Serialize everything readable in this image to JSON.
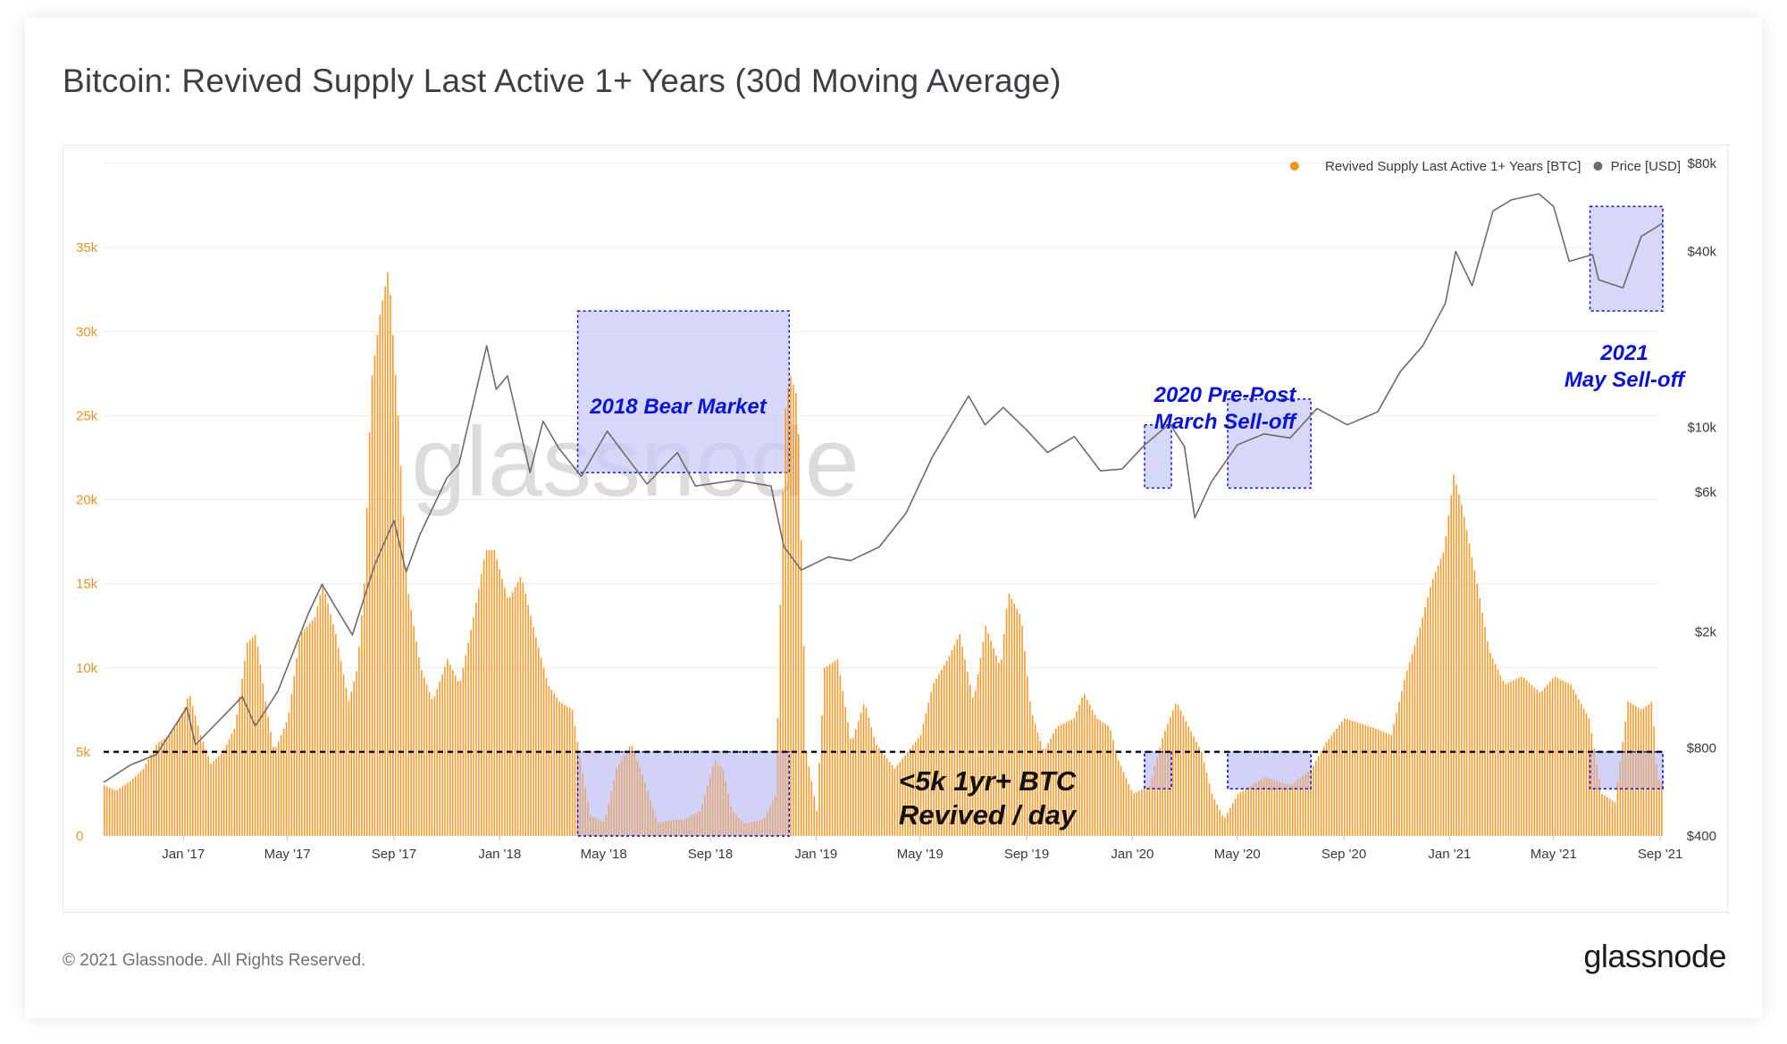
{
  "title": "Bitcoin: Revived Supply Last Active 1+ Years (30d Moving Average)",
  "footer": {
    "copyright": "© 2021 Glassnode. All Rights Reserved.",
    "logo": "glassnode"
  },
  "watermark": "glassnode",
  "legend": [
    {
      "label": "Revived Supply Last Active 1+ Years [BTC]",
      "color": "#f7931a"
    },
    {
      "label": "Price [USD]",
      "color": "#6c6c6c"
    }
  ],
  "colors": {
    "supply": "#f7931a",
    "price": "#6c6c6c",
    "annotation": "#0a14d9",
    "annotation_fill": "#c9c9f7"
  },
  "chart_data": {
    "type": "bar",
    "x_ticks": [
      "Jan '17",
      "May '17",
      "Sep '17",
      "Jan '18",
      "May '18",
      "Sep '18",
      "Jan '19",
      "May '19",
      "Sep '19",
      "Jan '20",
      "May '20",
      "Sep '20",
      "Jan '21",
      "May '21",
      "Sep '21"
    ],
    "x_range": [
      "2016-10-01",
      "2021-09-04"
    ],
    "y_left": {
      "ticks": [
        "0",
        "5k",
        "10k",
        "15k",
        "20k",
        "25k",
        "30k",
        "35k"
      ],
      "range": [
        0,
        40000
      ]
    },
    "y_right": {
      "scale": "log",
      "ticks": [
        "$400",
        "$800",
        "$2k",
        "$6k",
        "$10k",
        "$40k",
        "$80k"
      ],
      "range": [
        400,
        80000
      ]
    },
    "grid": true,
    "legend_position": "top-right",
    "series": [
      {
        "name": "Revived Supply Last Active 1+ Years [BTC]",
        "axis": "left",
        "points": [
          [
            "2016-10-01",
            3000
          ],
          [
            "2016-10-15",
            2700
          ],
          [
            "2016-11-01",
            3300
          ],
          [
            "2016-11-15",
            4000
          ],
          [
            "2016-12-01",
            5500
          ],
          [
            "2016-12-15",
            6000
          ],
          [
            "2017-01-01",
            7500
          ],
          [
            "2017-01-07",
            8500
          ],
          [
            "2017-01-20",
            6000
          ],
          [
            "2017-02-01",
            4300
          ],
          [
            "2017-02-15",
            5000
          ],
          [
            "2017-03-01",
            6500
          ],
          [
            "2017-03-15",
            11500
          ],
          [
            "2017-03-25",
            12000
          ],
          [
            "2017-04-05",
            8000
          ],
          [
            "2017-04-15",
            5000
          ],
          [
            "2017-05-01",
            7000
          ],
          [
            "2017-05-15",
            12000
          ],
          [
            "2017-06-01",
            13000
          ],
          [
            "2017-06-10",
            15000
          ],
          [
            "2017-06-25",
            12000
          ],
          [
            "2017-07-10",
            8000
          ],
          [
            "2017-07-20",
            10000
          ],
          [
            "2017-07-28",
            15000
          ],
          [
            "2017-08-05",
            27000
          ],
          [
            "2017-08-15",
            31000
          ],
          [
            "2017-08-25",
            33800
          ],
          [
            "2017-09-05",
            25000
          ],
          [
            "2017-09-15",
            15000
          ],
          [
            "2017-10-01",
            10000
          ],
          [
            "2017-10-15",
            8000
          ],
          [
            "2017-11-01",
            10500
          ],
          [
            "2017-11-15",
            9000
          ],
          [
            "2017-12-01",
            13000
          ],
          [
            "2017-12-15",
            17000
          ],
          [
            "2017-12-25",
            17000
          ],
          [
            "2018-01-10",
            14000
          ],
          [
            "2018-01-25",
            15500
          ],
          [
            "2018-02-10",
            12000
          ],
          [
            "2018-02-25",
            9000
          ],
          [
            "2018-03-10",
            8000
          ],
          [
            "2018-03-25",
            7500
          ],
          [
            "2018-04-05",
            4000
          ],
          [
            "2018-04-15",
            1200
          ],
          [
            "2018-05-01",
            800
          ],
          [
            "2018-05-15",
            4000
          ],
          [
            "2018-06-01",
            5500
          ],
          [
            "2018-06-15",
            3500
          ],
          [
            "2018-07-01",
            800
          ],
          [
            "2018-08-01",
            1000
          ],
          [
            "2018-08-20",
            1500
          ],
          [
            "2018-09-05",
            4500
          ],
          [
            "2018-09-15",
            4000
          ],
          [
            "2018-09-25",
            1500
          ],
          [
            "2018-10-10",
            700
          ],
          [
            "2018-11-01",
            1000
          ],
          [
            "2018-11-15",
            2500
          ],
          [
            "2018-11-25",
            25000
          ],
          [
            "2018-12-01",
            27500
          ],
          [
            "2018-12-10",
            26000
          ],
          [
            "2018-12-20",
            5000
          ],
          [
            "2019-01-01",
            1500
          ],
          [
            "2019-01-10",
            10000
          ],
          [
            "2019-01-25",
            10500
          ],
          [
            "2019-02-10",
            5500
          ],
          [
            "2019-02-25",
            8000
          ],
          [
            "2019-03-10",
            5500
          ],
          [
            "2019-04-01",
            4000
          ],
          [
            "2019-05-01",
            6000
          ],
          [
            "2019-05-15",
            9000
          ],
          [
            "2019-06-01",
            10500
          ],
          [
            "2019-06-15",
            12000
          ],
          [
            "2019-07-01",
            8000
          ],
          [
            "2019-07-15",
            12500
          ],
          [
            "2019-08-01",
            10000
          ],
          [
            "2019-08-10",
            14500
          ],
          [
            "2019-08-25",
            13000
          ],
          [
            "2019-09-05",
            7500
          ],
          [
            "2019-09-20",
            5000
          ],
          [
            "2019-10-05",
            6500
          ],
          [
            "2019-10-25",
            7000
          ],
          [
            "2019-11-05",
            8500
          ],
          [
            "2019-11-20",
            7000
          ],
          [
            "2019-12-05",
            6500
          ],
          [
            "2019-12-15",
            4500
          ],
          [
            "2020-01-01",
            2500
          ],
          [
            "2020-01-20",
            3000
          ],
          [
            "2020-02-05",
            6000
          ],
          [
            "2020-02-20",
            8000
          ],
          [
            "2020-03-05",
            6500
          ],
          [
            "2020-03-20",
            5000
          ],
          [
            "2020-04-01",
            2500
          ],
          [
            "2020-04-15",
            1000
          ],
          [
            "2020-05-01",
            2500
          ],
          [
            "2020-06-01",
            3500
          ],
          [
            "2020-07-01",
            3000
          ],
          [
            "2020-07-25",
            4000
          ],
          [
            "2020-08-10",
            5500
          ],
          [
            "2020-09-01",
            7000
          ],
          [
            "2020-10-01",
            6500
          ],
          [
            "2020-10-25",
            6000
          ],
          [
            "2020-11-10",
            9500
          ],
          [
            "2020-11-25",
            12000
          ],
          [
            "2020-12-10",
            15000
          ],
          [
            "2020-12-25",
            17000
          ],
          [
            "2021-01-05",
            21500
          ],
          [
            "2021-01-15",
            19500
          ],
          [
            "2021-02-01",
            15000
          ],
          [
            "2021-02-15",
            11000
          ],
          [
            "2021-03-05",
            9000
          ],
          [
            "2021-03-25",
            9500
          ],
          [
            "2021-04-15",
            8500
          ],
          [
            "2021-05-01",
            9500
          ],
          [
            "2021-05-20",
            9000
          ],
          [
            "2021-06-10",
            7000
          ],
          [
            "2021-06-25",
            2500
          ],
          [
            "2021-07-10",
            2000
          ],
          [
            "2021-07-25",
            8000
          ],
          [
            "2021-08-10",
            7500
          ],
          [
            "2021-08-22",
            8000
          ],
          [
            "2021-08-28",
            3500
          ],
          [
            "2021-09-04",
            3000
          ]
        ]
      },
      {
        "name": "Price [USD]",
        "axis": "right",
        "points": [
          [
            "2016-10-01",
            610
          ],
          [
            "2016-11-01",
            700
          ],
          [
            "2016-12-01",
            760
          ],
          [
            "2017-01-05",
            1100
          ],
          [
            "2017-01-15",
            820
          ],
          [
            "2017-02-15",
            1020
          ],
          [
            "2017-03-10",
            1200
          ],
          [
            "2017-03-25",
            950
          ],
          [
            "2017-04-20",
            1250
          ],
          [
            "2017-05-25",
            2300
          ],
          [
            "2017-06-10",
            2900
          ],
          [
            "2017-07-15",
            1950
          ],
          [
            "2017-08-10",
            3400
          ],
          [
            "2017-09-01",
            4800
          ],
          [
            "2017-09-15",
            3200
          ],
          [
            "2017-10-01",
            4300
          ],
          [
            "2017-11-01",
            6700
          ],
          [
            "2017-11-15",
            7500
          ],
          [
            "2017-12-10",
            15500
          ],
          [
            "2017-12-17",
            19000
          ],
          [
            "2017-12-28",
            13500
          ],
          [
            "2018-01-10",
            15000
          ],
          [
            "2018-02-05",
            7000
          ],
          [
            "2018-02-20",
            10500
          ],
          [
            "2018-03-10",
            8500
          ],
          [
            "2018-04-05",
            6800
          ],
          [
            "2018-05-05",
            9700
          ],
          [
            "2018-06-20",
            6400
          ],
          [
            "2018-07-25",
            8200
          ],
          [
            "2018-08-15",
            6300
          ],
          [
            "2018-10-01",
            6600
          ],
          [
            "2018-11-10",
            6300
          ],
          [
            "2018-11-25",
            3900
          ],
          [
            "2018-12-15",
            3250
          ],
          [
            "2019-01-15",
            3600
          ],
          [
            "2019-02-10",
            3500
          ],
          [
            "2019-03-15",
            3900
          ],
          [
            "2019-04-15",
            5100
          ],
          [
            "2019-05-15",
            7900
          ],
          [
            "2019-06-26",
            12800
          ],
          [
            "2019-07-15",
            10200
          ],
          [
            "2019-08-05",
            11700
          ],
          [
            "2019-09-01",
            9800
          ],
          [
            "2019-09-25",
            8200
          ],
          [
            "2019-10-26",
            9300
          ],
          [
            "2019-11-25",
            7100
          ],
          [
            "2019-12-20",
            7200
          ],
          [
            "2020-01-15",
            8700
          ],
          [
            "2020-02-13",
            10300
          ],
          [
            "2020-03-01",
            8600
          ],
          [
            "2020-03-13",
            4900
          ],
          [
            "2020-04-01",
            6500
          ],
          [
            "2020-05-01",
            8700
          ],
          [
            "2020-06-01",
            9500
          ],
          [
            "2020-07-01",
            9200
          ],
          [
            "2020-08-01",
            11600
          ],
          [
            "2020-09-05",
            10200
          ],
          [
            "2020-10-10",
            11300
          ],
          [
            "2020-11-05",
            15500
          ],
          [
            "2020-12-01",
            19000
          ],
          [
            "2020-12-27",
            26500
          ],
          [
            "2021-01-08",
            40000
          ],
          [
            "2021-01-27",
            30500
          ],
          [
            "2021-02-20",
            55000
          ],
          [
            "2021-03-13",
            60000
          ],
          [
            "2021-04-14",
            63000
          ],
          [
            "2021-05-01",
            57000
          ],
          [
            "2021-05-19",
            37000
          ],
          [
            "2021-06-15",
            39000
          ],
          [
            "2021-06-22",
            32000
          ],
          [
            "2021-07-20",
            30000
          ],
          [
            "2021-08-10",
            45000
          ],
          [
            "2021-09-04",
            50000
          ]
        ]
      }
    ],
    "threshold": {
      "value": 5000,
      "style": "dashed"
    },
    "annotations": [
      {
        "label_lines": [
          "2018 Bear Market"
        ],
        "price_box": {
          "x": [
            "2018-04-01",
            "2018-12-01"
          ],
          "y": [
            7000,
            25000
          ]
        },
        "supply_box": {
          "x": [
            "2018-04-01",
            "2018-12-01"
          ],
          "y": [
            0,
            5000
          ]
        }
      },
      {
        "label_lines": [
          "2020 Pre-Post",
          "March Sell-off"
        ],
        "price_box": {
          "x": [
            "2020-01-15",
            "2020-02-15"
          ],
          "y": [
            6200,
            10200
          ]
        },
        "supply_box": {
          "x": [
            "2020-01-15",
            "2020-02-15"
          ],
          "y": [
            2800,
            5000
          ]
        }
      },
      {
        "label_lines": [],
        "price_box": {
          "x": [
            "2020-04-20",
            "2020-07-25"
          ],
          "y": [
            6200,
            12500
          ]
        },
        "supply_box": {
          "x": [
            "2020-04-20",
            "2020-07-25"
          ],
          "y": [
            2800,
            5000
          ]
        }
      },
      {
        "label_lines": [
          "2021",
          "May Sell-off"
        ],
        "price_box": {
          "x": [
            "2021-06-12",
            "2021-09-04"
          ],
          "y": [
            25000,
            57000
          ]
        },
        "supply_box": {
          "x": [
            "2021-06-12",
            "2021-09-04"
          ],
          "y": [
            2800,
            5000
          ]
        }
      }
    ],
    "threshold_label_lines": [
      "<5k 1yr+ BTC",
      "Revived / day"
    ]
  }
}
